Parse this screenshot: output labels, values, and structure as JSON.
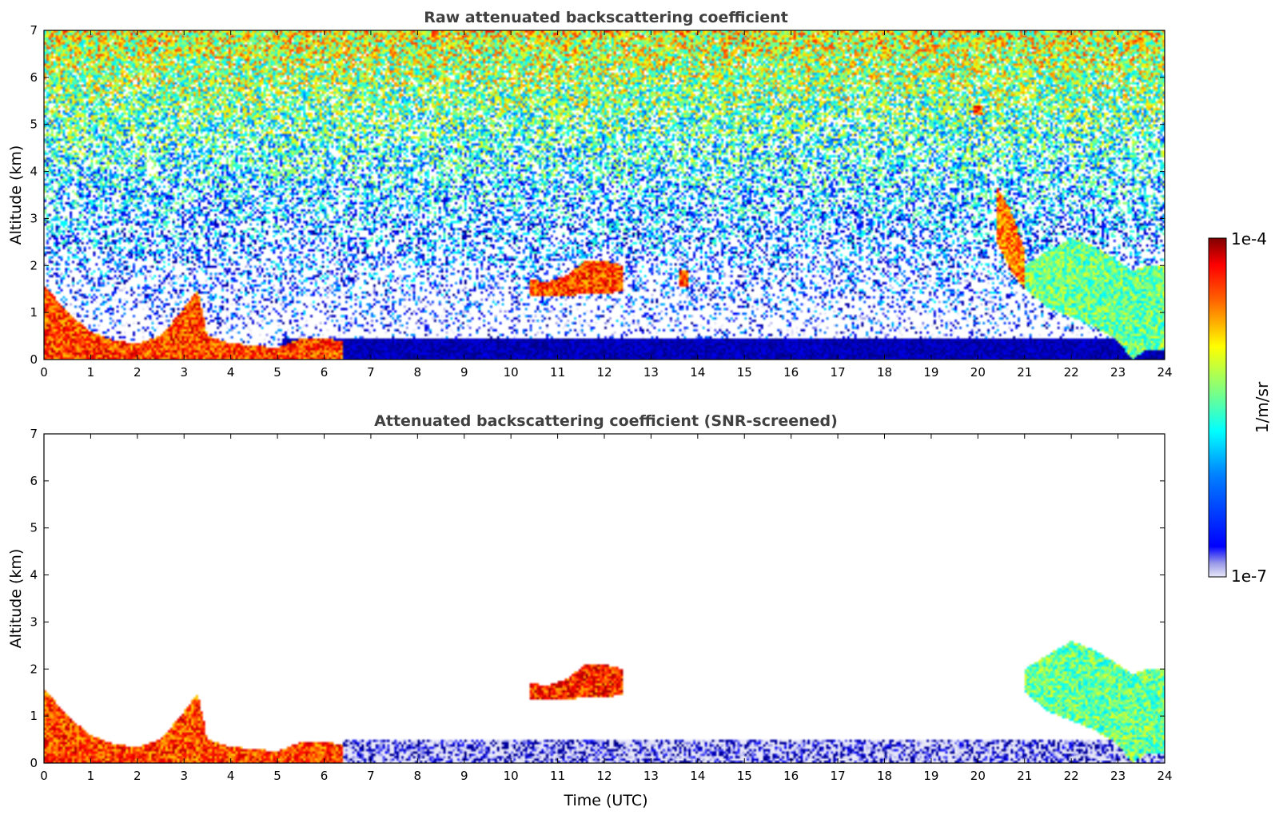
{
  "chart_data": [
    {
      "type": "heatmap",
      "title": "Raw attenuated backscattering coefficient",
      "xlabel": "",
      "ylabel": "Altitude (km)",
      "xlim": [
        0,
        24
      ],
      "ylim": [
        0,
        7
      ],
      "xticks": [
        "0",
        "1",
        "2",
        "3",
        "4",
        "5",
        "6",
        "7",
        "8",
        "9",
        "10",
        "11",
        "12",
        "13",
        "14",
        "15",
        "16",
        "17",
        "18",
        "19",
        "20",
        "21",
        "22",
        "23",
        "24"
      ],
      "yticks": [
        "0",
        "1",
        "2",
        "3",
        "4",
        "5",
        "6",
        "7"
      ],
      "features": [
        {
          "kind": "boundary_layer",
          "x": [
            0,
            0.5,
            1,
            1.5,
            2,
            2.5,
            3,
            3.3,
            3.5,
            4,
            4.5,
            5,
            5.5,
            6,
            6.4
          ],
          "top": [
            1.6,
            1.0,
            0.6,
            0.4,
            0.35,
            0.5,
            1.1,
            1.5,
            0.5,
            0.35,
            0.3,
            0.25,
            0.45,
            0.45,
            0.4
          ],
          "level": 0.95
        },
        {
          "kind": "elevated_layer",
          "x": [
            10.4,
            10.8,
            11.2,
            11.6,
            12.0,
            12.4
          ],
          "base": [
            1.35,
            1.35,
            1.35,
            1.4,
            1.4,
            1.45
          ],
          "top": [
            1.7,
            1.65,
            1.8,
            2.1,
            2.1,
            2.0
          ],
          "level": 0.95
        },
        {
          "kind": "elevated_layer",
          "x": [
            13.6,
            13.8
          ],
          "base": [
            1.55,
            1.55
          ],
          "top": [
            1.9,
            1.9
          ],
          "level": 0.95
        },
        {
          "kind": "cloud_layer",
          "x": [
            21.0,
            21.5,
            22.0,
            22.5,
            23.0,
            23.3,
            23.6,
            24.0
          ],
          "base": [
            1.5,
            1.1,
            0.9,
            0.7,
            0.4,
            0.0,
            0.2,
            0.2
          ],
          "top": [
            2.0,
            2.3,
            2.6,
            2.4,
            2.1,
            1.9,
            2.0,
            2.0
          ],
          "level": 0.65
        },
        {
          "kind": "fall_streak",
          "x": [
            20.4,
            20.7,
            21.0
          ],
          "base": [
            2.5,
            1.9,
            1.5
          ],
          "top": [
            3.7,
            3.2,
            2.3
          ],
          "level": 0.9
        },
        {
          "kind": "small_cloud",
          "x": [
            19.9,
            20.1
          ],
          "base": [
            5.2,
            5.2
          ],
          "top": [
            5.4,
            5.4
          ],
          "level": 0.95
        }
      ]
    },
    {
      "type": "heatmap",
      "title": "Attenuated backscattering coefficient (SNR-screened)",
      "xlabel": "Time (UTC)",
      "ylabel": "Altitude (km)",
      "xlim": [
        0,
        24
      ],
      "ylim": [
        0,
        7
      ],
      "xticks": [
        "0",
        "1",
        "2",
        "3",
        "4",
        "5",
        "6",
        "7",
        "8",
        "9",
        "10",
        "11",
        "12",
        "13",
        "14",
        "15",
        "16",
        "17",
        "18",
        "19",
        "20",
        "21",
        "22",
        "23",
        "24"
      ],
      "yticks": [
        "0",
        "1",
        "2",
        "3",
        "4",
        "5",
        "6",
        "7"
      ],
      "features": [
        {
          "kind": "boundary_layer",
          "x": [
            0,
            0.5,
            1,
            1.5,
            2,
            2.5,
            3,
            3.3,
            3.5,
            4,
            4.5,
            5,
            5.5,
            6,
            6.4
          ],
          "top": [
            1.6,
            1.0,
            0.6,
            0.4,
            0.35,
            0.5,
            1.1,
            1.5,
            0.5,
            0.35,
            0.3,
            0.25,
            0.45,
            0.45,
            0.4
          ],
          "level": 0.95
        },
        {
          "kind": "elevated_layer",
          "x": [
            10.4,
            10.8,
            11.2,
            11.6,
            12.0,
            12.4
          ],
          "base": [
            1.35,
            1.35,
            1.35,
            1.4,
            1.4,
            1.45
          ],
          "top": [
            1.7,
            1.65,
            1.8,
            2.1,
            2.1,
            2.0
          ],
          "level": 0.98
        },
        {
          "kind": "cloud_layer",
          "x": [
            21.0,
            21.5,
            22.0,
            22.5,
            23.0,
            23.3,
            23.6,
            24.0
          ],
          "base": [
            1.5,
            1.1,
            0.9,
            0.7,
            0.4,
            0.0,
            0.2,
            0.2
          ],
          "top": [
            2.0,
            2.3,
            2.6,
            2.4,
            2.1,
            1.9,
            2.0,
            2.0
          ],
          "level": 0.65
        },
        {
          "kind": "screened_background",
          "x": [
            6.4,
            24.0
          ],
          "top": [
            0.5,
            0.5
          ],
          "level": 0.15
        }
      ]
    }
  ],
  "colorbar": {
    "label": "1/m/sr",
    "max_label": "1e-4",
    "min_label": "1e-7",
    "range": [
      1e-07,
      0.0001
    ],
    "scale": "log",
    "colormap": "jet",
    "low_shade": "#e8e8f8",
    "high_color": "#7f0000"
  }
}
